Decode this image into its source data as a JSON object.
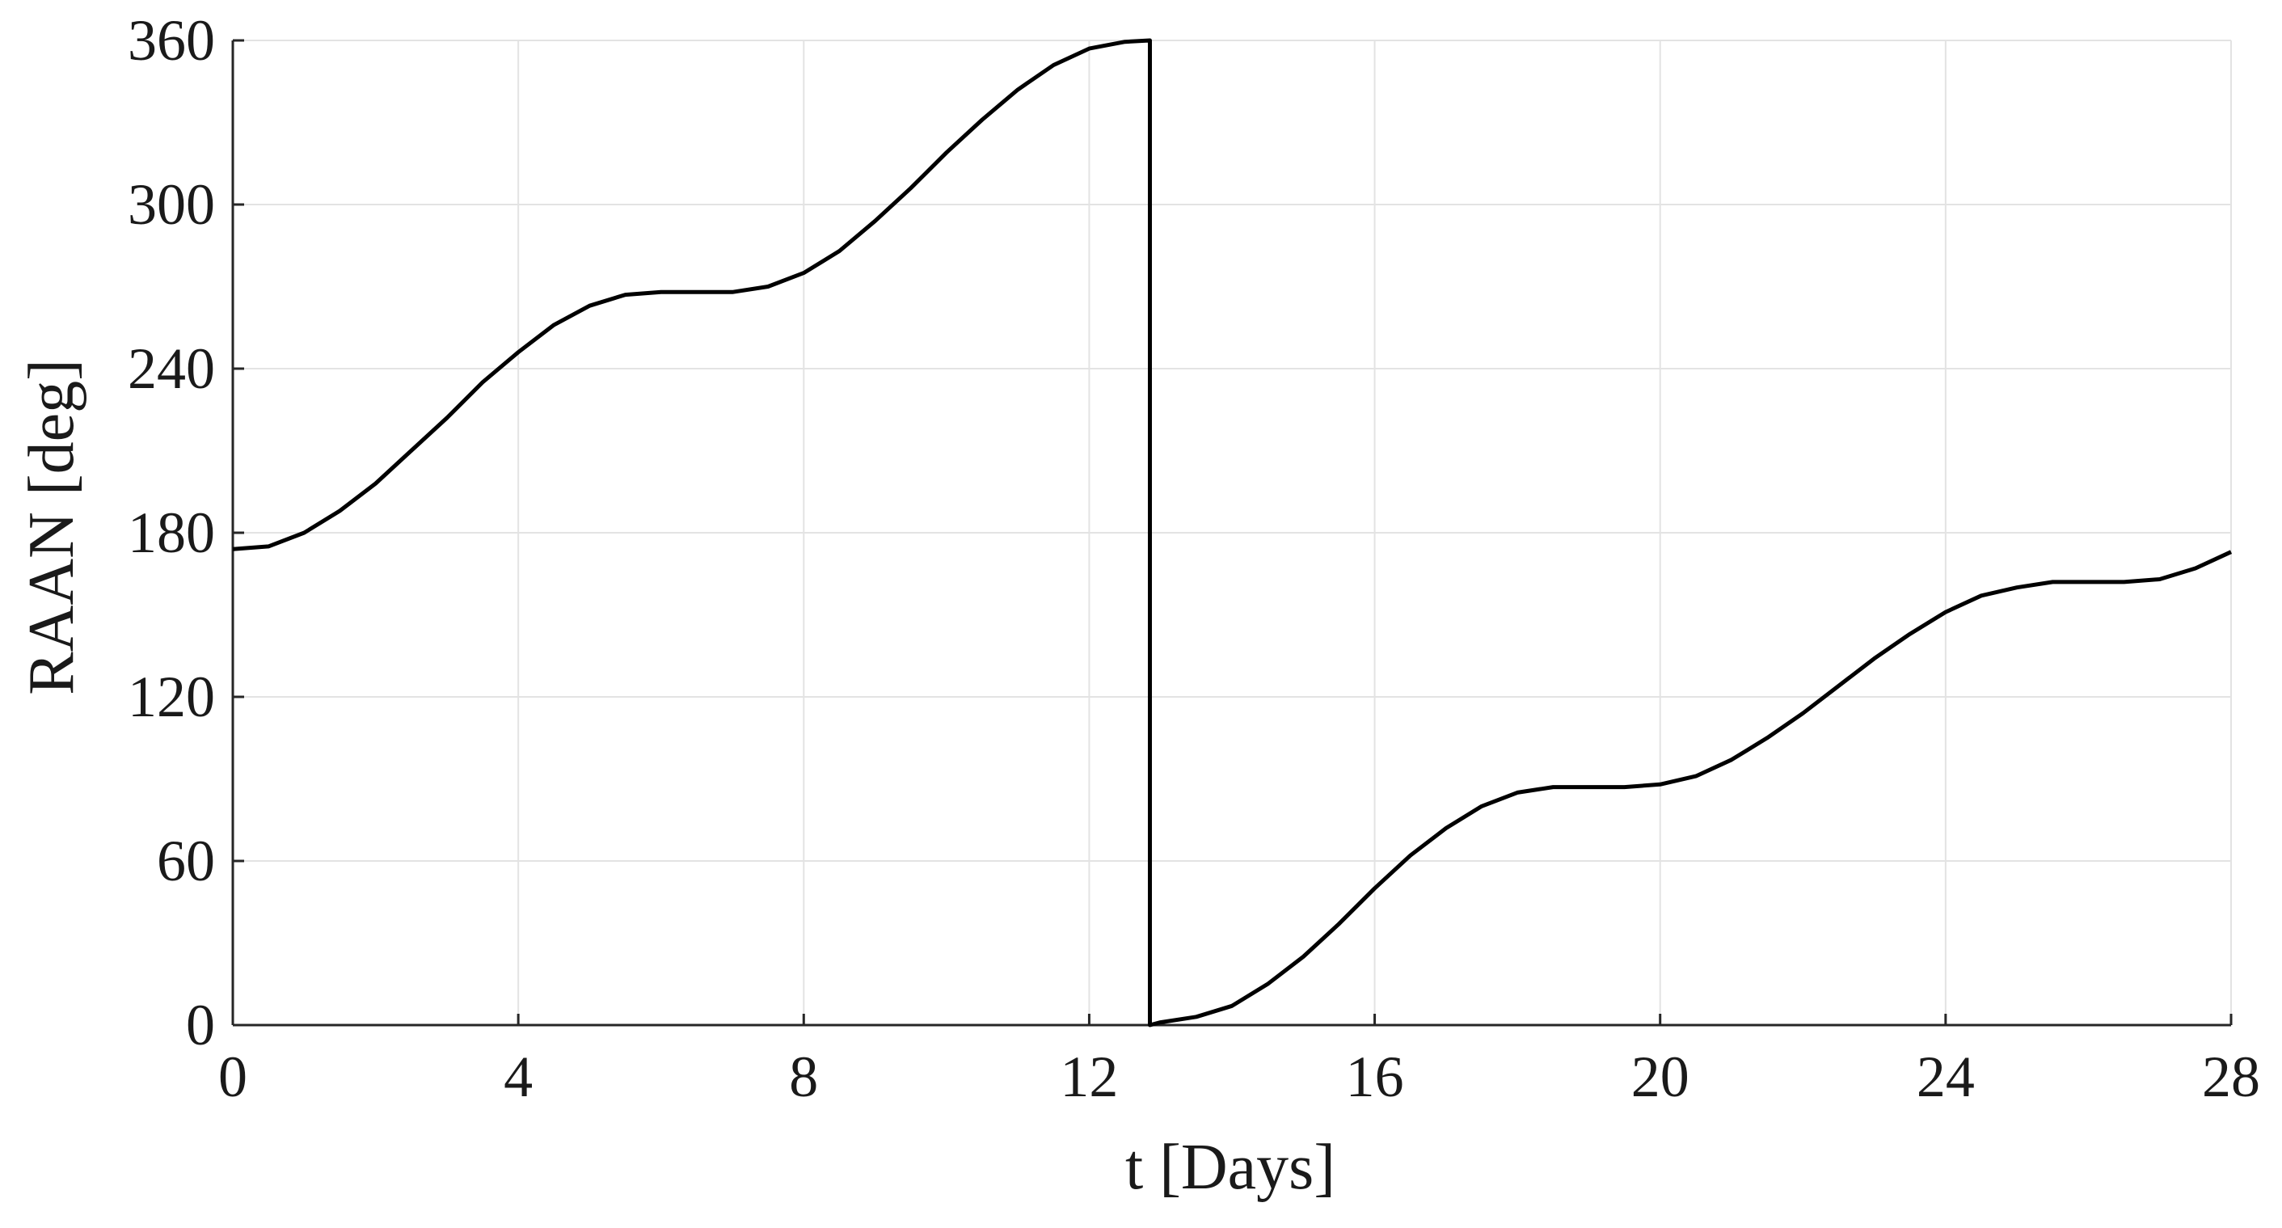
{
  "chart_data": {
    "type": "line",
    "title": "",
    "xlabel": "t [Days]",
    "ylabel": "RAAN [deg]",
    "xlim": [
      0,
      28
    ],
    "ylim": [
      0,
      360
    ],
    "xticks": [
      0,
      4,
      8,
      12,
      16,
      20,
      24,
      28
    ],
    "yticks": [
      0,
      60,
      120,
      180,
      240,
      300,
      360
    ],
    "grid": true,
    "legend": "none",
    "series": [
      {
        "color": "#000000",
        "x": [
          0,
          0.5,
          1,
          1.5,
          2,
          2.5,
          3,
          3.5,
          4,
          4.5,
          5,
          5.5,
          6,
          6.5,
          7,
          7.5,
          8,
          8.5,
          9,
          9.5,
          10,
          10.5,
          11,
          11.5,
          12,
          12.5,
          12.85,
          12.85,
          13,
          13.5,
          14,
          14.5,
          15,
          15.5,
          16,
          16.5,
          17,
          17.5,
          18,
          18.5,
          19,
          19.5,
          20,
          20.5,
          21,
          21.5,
          22,
          22.5,
          23,
          23.5,
          24,
          24.5,
          25,
          25.5,
          26,
          26.5,
          27,
          27.5,
          28
        ],
        "y": [
          174,
          175,
          180,
          188,
          198,
          210,
          222,
          235,
          246,
          256,
          263,
          267,
          268,
          268,
          268,
          270,
          275,
          283,
          294,
          306,
          319,
          331,
          342,
          351,
          357,
          359.5,
          360,
          0,
          1,
          3,
          7,
          15,
          25,
          37,
          50,
          62,
          72,
          80,
          85,
          87,
          87,
          87,
          88,
          91,
          97,
          105,
          114,
          124,
          134,
          143,
          151,
          157,
          160,
          162,
          162,
          162,
          163,
          167,
          173
        ]
      }
    ]
  }
}
